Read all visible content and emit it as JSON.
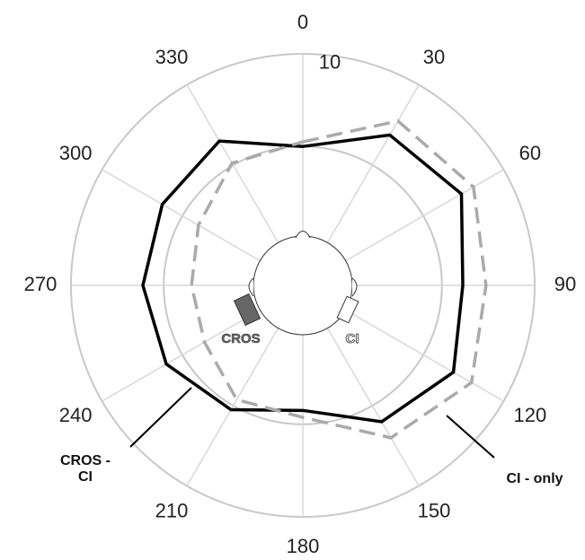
{
  "chart_data": {
    "type": "polar",
    "theta": [
      0,
      30,
      60,
      90,
      120,
      150,
      180,
      210,
      240,
      270,
      300,
      330
    ],
    "rlim": [
      0,
      10
    ],
    "rticks": [
      10
    ],
    "rgrid": [
      6,
      10
    ],
    "series": [
      {
        "name": "CROS - CI",
        "color": "#000000",
        "dash": false,
        "values": [
          6.0,
          7.5,
          7.9,
          6.9,
          7.5,
          6.8,
          5.4,
          6.2,
          6.8,
          6.9,
          7.0,
          7.2
        ]
      },
      {
        "name": "CI - only",
        "color": "#aaaaaa",
        "dash": true,
        "values": [
          6.2,
          8.2,
          8.5,
          7.9,
          8.4,
          7.6,
          5.7,
          5.7,
          4.9,
          4.8,
          5.2,
          6.1
        ]
      }
    ],
    "device_labels": [
      "CROS",
      "CI"
    ]
  }
}
